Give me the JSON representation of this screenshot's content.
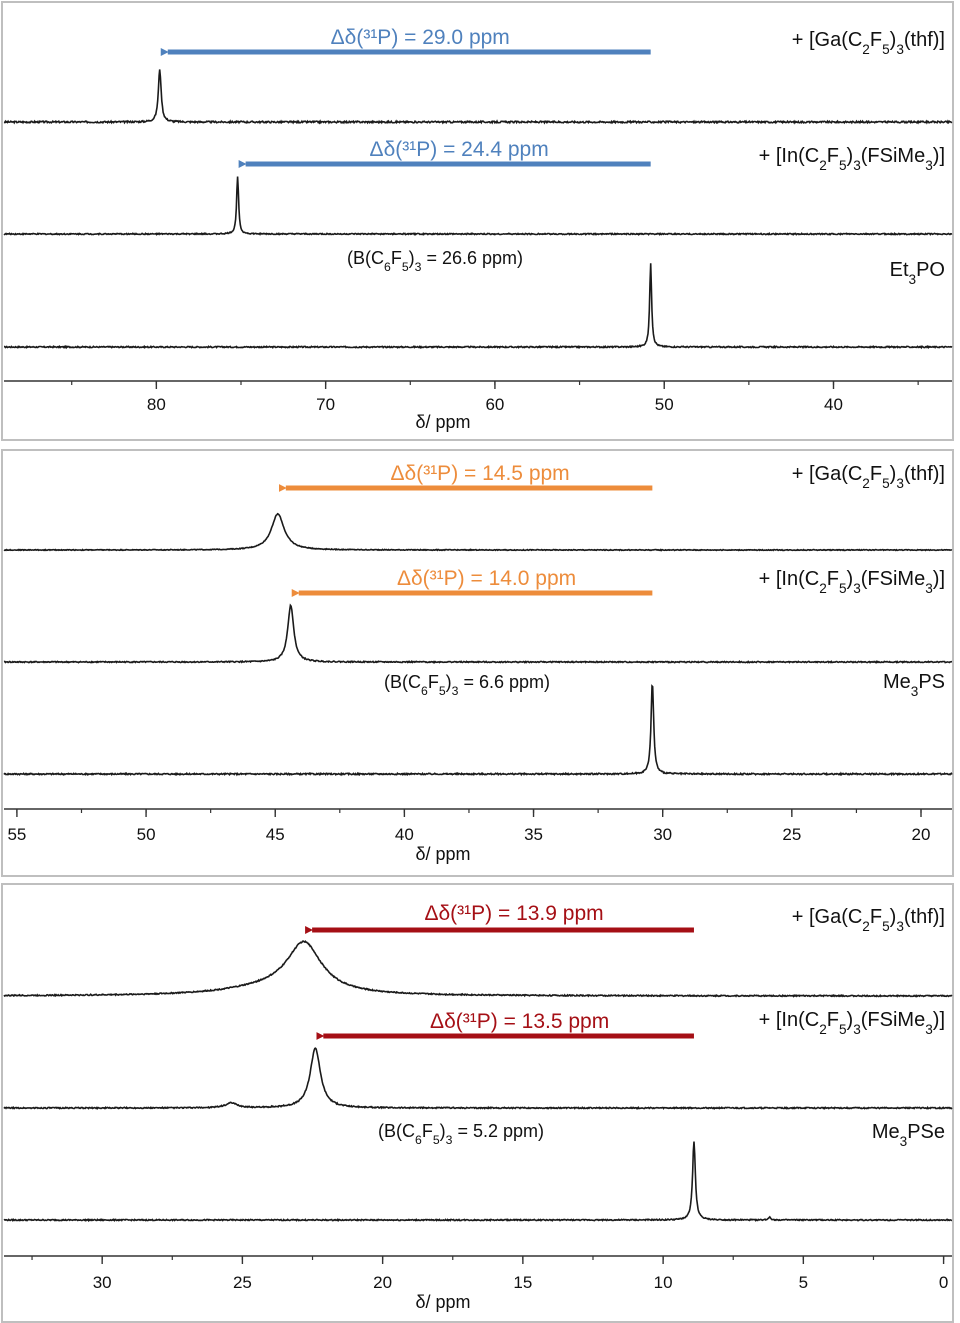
{
  "chart_data": [
    {
      "type": "line",
      "nucleus": "31P NMR",
      "xlabel": "δ/ ppm",
      "xlim": [
        89,
        33
      ],
      "xticks": [
        80,
        70,
        60,
        50,
        40
      ],
      "annotation_color": "#4f81bd",
      "series": [
        {
          "label_parts": [
            "+ [Ga(C",
            "2",
            "F",
            "5",
            ")",
            "3",
            "(thf)]"
          ],
          "peak": 79.8,
          "width": 0.1,
          "height": 0.95,
          "noise": 0.03,
          "arrow": {
            "from": 50.8,
            "to": 79.8,
            "text": "Δδ(³¹P) = 29.0 ppm"
          }
        },
        {
          "label_parts": [
            "+ [In(C",
            "2",
            "F",
            "5",
            ")",
            "3",
            "(FSiMe",
            "3",
            ")]"
          ],
          "peak": 75.2,
          "width": 0.07,
          "height": 1.0,
          "noise": 0.02,
          "arrow": {
            "from": 50.8,
            "to": 75.2,
            "text": "Δδ(³¹P) = 24.4 ppm"
          }
        },
        {
          "label_parts": [
            "Et",
            "3",
            "PO"
          ],
          "peak": 50.8,
          "width": 0.07,
          "height": 1.0,
          "noise": 0.015,
          "note_parts": [
            "(B(C",
            "6",
            "F",
            "5",
            ")",
            "3",
            " = 26.6 ppm)"
          ]
        }
      ]
    },
    {
      "type": "line",
      "nucleus": "31P NMR",
      "xlabel": "δ/ ppm",
      "xlim": [
        55.5,
        18.8
      ],
      "xticks": [
        55,
        50,
        45,
        40,
        35,
        30,
        25,
        20
      ],
      "annotation_color": "#ed8c3b",
      "series": [
        {
          "label_parts": [
            "+ [Ga(C",
            "2",
            "F",
            "5",
            ")",
            "3",
            "(thf)]"
          ],
          "peak": 44.9,
          "width": 0.3,
          "height": 0.9,
          "noise": 0.02,
          "arrow": {
            "from": 30.4,
            "to": 44.9,
            "text": "Δδ(³¹P) = 14.5 ppm"
          }
        },
        {
          "label_parts": [
            "+ [In(C",
            "2",
            "F",
            "5",
            ")",
            "3",
            "(FSiMe",
            "3",
            ")]"
          ],
          "peak": 44.4,
          "width": 0.14,
          "height": 1.0,
          "noise": 0.02,
          "arrow": {
            "from": 30.4,
            "to": 44.4,
            "text": "Δδ(³¹P) = 14.0 ppm"
          }
        },
        {
          "label_parts": [
            "Me",
            "3",
            "PS"
          ],
          "peak": 30.4,
          "width": 0.06,
          "height": 1.0,
          "noise": 0.015,
          "note_parts": [
            "(B(C",
            "6",
            "F",
            "5",
            ")",
            "3",
            " = 6.6 ppm)"
          ]
        }
      ]
    },
    {
      "type": "line",
      "nucleus": "31P NMR",
      "xlabel": "δ/ ppm",
      "xlim": [
        33.5,
        -0.3
      ],
      "xticks": [
        30,
        25,
        20,
        15,
        10,
        5,
        0
      ],
      "annotation_color": "#a50f15",
      "series": [
        {
          "label_parts": [
            "+ [Ga(C",
            "2",
            "F",
            "5",
            ")",
            "3",
            "(thf)]"
          ],
          "peak": 22.8,
          "width": 0.75,
          "height": 0.85,
          "noise": 0.02,
          "extra_peaks": [
            {
              "peak": 24.0,
              "width": 2.0,
              "height": 0.12
            }
          ],
          "arrow": {
            "from": 8.9,
            "to": 22.8,
            "text": "Δδ(³¹P) = 13.9 ppm"
          }
        },
        {
          "label_parts": [
            "+ [In(C",
            "2",
            "F",
            "5",
            ")",
            "3",
            "(FSiMe",
            "3",
            ")]"
          ],
          "peak": 22.4,
          "width": 0.22,
          "height": 1.0,
          "noise": 0.02,
          "extra_peaks": [
            {
              "peak": 25.4,
              "width": 0.25,
              "height": 0.08
            }
          ],
          "arrow": {
            "from": 8.9,
            "to": 22.4,
            "text": "Δδ(³¹P) = 13.5 ppm"
          }
        },
        {
          "label_parts": [
            "Me",
            "3",
            "PSe"
          ],
          "peak": 8.9,
          "width": 0.06,
          "height": 1.0,
          "noise": 0.015,
          "extra_peaks": [
            {
              "peak": 6.2,
              "width": 0.05,
              "height": 0.04
            }
          ],
          "note_parts": [
            "(B(C",
            "6",
            "F",
            "5",
            ")",
            "3",
            " = 5.2 ppm)"
          ]
        }
      ]
    }
  ]
}
